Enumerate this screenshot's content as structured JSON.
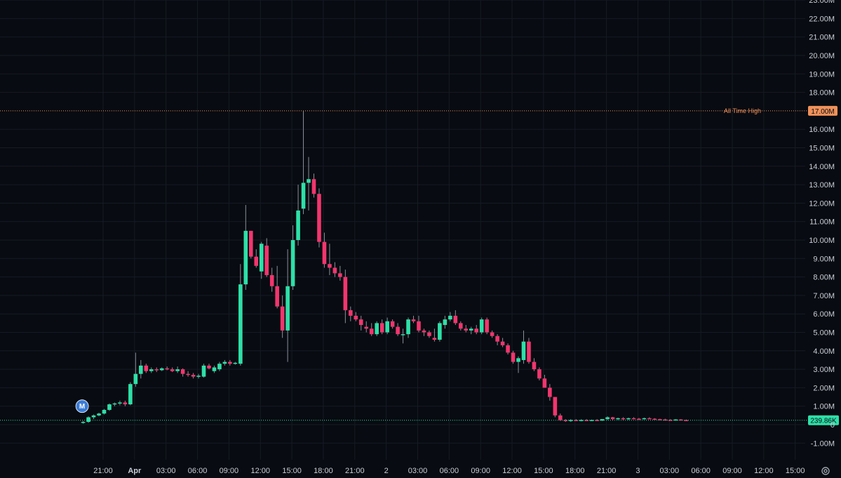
{
  "chart_data": {
    "type": "candlestick",
    "y_unit": "market cap",
    "ylim": [
      -1.5,
      23
    ],
    "y_ticks": [
      {
        "v": -1,
        "label": "-1.00M"
      },
      {
        "v": 0,
        "label": "0"
      },
      {
        "v": 1,
        "label": "1.00M"
      },
      {
        "v": 2,
        "label": "2.00M"
      },
      {
        "v": 3,
        "label": "3.00M"
      },
      {
        "v": 4,
        "label": "4.00M"
      },
      {
        "v": 5,
        "label": "5.00M"
      },
      {
        "v": 6,
        "label": "6.00M"
      },
      {
        "v": 7,
        "label": "7.00M"
      },
      {
        "v": 8,
        "label": "8.00M"
      },
      {
        "v": 9,
        "label": "9.00M"
      },
      {
        "v": 10,
        "label": "10.00M"
      },
      {
        "v": 11,
        "label": "11.00M"
      },
      {
        "v": 12,
        "label": "12.00M"
      },
      {
        "v": 13,
        "label": "13.00M"
      },
      {
        "v": 14,
        "label": "14.00M"
      },
      {
        "v": 15,
        "label": "15.00M"
      },
      {
        "v": 16,
        "label": "16.00M"
      },
      {
        "v": 18,
        "label": "18.00M"
      },
      {
        "v": 19,
        "label": "19.00M"
      },
      {
        "v": 20,
        "label": "20.00M"
      },
      {
        "v": 21,
        "label": "21.00M"
      },
      {
        "v": 22,
        "label": "22.00M"
      },
      {
        "v": 23,
        "label": "23.00M"
      }
    ],
    "x_ticks": [
      {
        "t": 21,
        "label": "21:00"
      },
      {
        "t": 24,
        "label": "Apr",
        "bold": true
      },
      {
        "t": 27,
        "label": "03:00"
      },
      {
        "t": 30,
        "label": "06:00"
      },
      {
        "t": 33,
        "label": "09:00"
      },
      {
        "t": 36,
        "label": "12:00"
      },
      {
        "t": 39,
        "label": "15:00"
      },
      {
        "t": 42,
        "label": "18:00"
      },
      {
        "t": 45,
        "label": "21:00"
      },
      {
        "t": 48,
        "label": "2"
      },
      {
        "t": 51,
        "label": "03:00"
      },
      {
        "t": 54,
        "label": "06:00"
      },
      {
        "t": 57,
        "label": "09:00"
      },
      {
        "t": 60,
        "label": "12:00"
      },
      {
        "t": 63,
        "label": "15:00"
      },
      {
        "t": 66,
        "label": "18:00"
      },
      {
        "t": 69,
        "label": "21:00"
      },
      {
        "t": 72,
        "label": "3"
      },
      {
        "t": 75,
        "label": "03:00"
      },
      {
        "t": 78,
        "label": "06:00"
      },
      {
        "t": 81,
        "label": "09:00"
      },
      {
        "t": 84,
        "label": "12:00"
      },
      {
        "t": 87,
        "label": "15:00"
      }
    ],
    "candle_interval_hours": 0.5,
    "first_candle_t": 19.1,
    "candles": [
      [
        0.1,
        0.2,
        0.05,
        0.15
      ],
      [
        0.15,
        0.45,
        0.1,
        0.4
      ],
      [
        0.4,
        0.55,
        0.3,
        0.5
      ],
      [
        0.5,
        0.65,
        0.45,
        0.6
      ],
      [
        0.6,
        0.85,
        0.55,
        0.8
      ],
      [
        0.8,
        1.15,
        0.75,
        1.1
      ],
      [
        1.1,
        1.2,
        1.0,
        1.15
      ],
      [
        1.15,
        1.3,
        1.05,
        1.2
      ],
      [
        1.2,
        1.3,
        1.0,
        1.1
      ],
      [
        1.1,
        2.3,
        1.05,
        2.2
      ],
      [
        2.2,
        3.9,
        2.05,
        2.75
      ],
      [
        2.75,
        3.5,
        2.5,
        3.2
      ],
      [
        3.2,
        3.3,
        2.8,
        2.9
      ],
      [
        2.9,
        3.1,
        2.8,
        3.0
      ],
      [
        3.0,
        3.1,
        2.85,
        2.95
      ],
      [
        2.95,
        3.1,
        2.9,
        3.05
      ],
      [
        3.05,
        3.15,
        2.95,
        3.0
      ],
      [
        3.0,
        3.1,
        2.85,
        2.9
      ],
      [
        2.9,
        3.15,
        2.8,
        3.0
      ],
      [
        3.0,
        3.05,
        2.6,
        2.75
      ],
      [
        2.75,
        2.9,
        2.6,
        2.7
      ],
      [
        2.7,
        2.8,
        2.5,
        2.6
      ],
      [
        2.6,
        2.75,
        2.5,
        2.65
      ],
      [
        2.6,
        3.3,
        2.55,
        3.2
      ],
      [
        3.2,
        3.3,
        3.0,
        3.05
      ],
      [
        2.9,
        3.2,
        2.8,
        3.1
      ],
      [
        3.0,
        3.4,
        2.9,
        3.3
      ],
      [
        3.3,
        3.5,
        3.2,
        3.4
      ],
      [
        3.4,
        3.5,
        3.2,
        3.3
      ],
      [
        3.3,
        3.4,
        3.25,
        3.35
      ],
      [
        3.3,
        8.7,
        3.2,
        7.6
      ],
      [
        7.6,
        11.9,
        7.3,
        10.5
      ],
      [
        10.5,
        10.5,
        9.0,
        9.1
      ],
      [
        9.1,
        9.5,
        8.5,
        8.6
      ],
      [
        8.3,
        9.9,
        7.9,
        9.8
      ],
      [
        9.7,
        10.1,
        8.0,
        8.1
      ],
      [
        8.1,
        8.5,
        7.2,
        7.5
      ],
      [
        7.5,
        8.6,
        6.3,
        6.4
      ],
      [
        6.4,
        7.0,
        4.7,
        5.1
      ],
      [
        5.1,
        9.5,
        3.4,
        7.5
      ],
      [
        7.5,
        10.8,
        7.3,
        10.0
      ],
      [
        10.0,
        13.0,
        9.7,
        11.6
      ],
      [
        11.7,
        17.0,
        11.4,
        13.1
      ],
      [
        13.1,
        14.5,
        11.6,
        13.3
      ],
      [
        13.3,
        13.6,
        12.3,
        12.5
      ],
      [
        12.5,
        12.8,
        9.6,
        9.9
      ],
      [
        9.9,
        10.4,
        8.5,
        8.7
      ],
      [
        8.7,
        9.8,
        8.1,
        8.5
      ],
      [
        8.5,
        8.8,
        8.0,
        8.2
      ],
      [
        8.2,
        8.6,
        7.8,
        8.0
      ],
      [
        8.0,
        8.4,
        5.5,
        6.2
      ],
      [
        6.2,
        6.4,
        5.6,
        5.9
      ],
      [
        5.9,
        6.1,
        5.6,
        5.7
      ],
      [
        5.7,
        5.9,
        5.1,
        5.4
      ],
      [
        5.3,
        5.6,
        5.0,
        5.2
      ],
      [
        5.2,
        5.5,
        4.8,
        4.9
      ],
      [
        4.9,
        5.6,
        4.8,
        5.5
      ],
      [
        5.5,
        5.7,
        4.9,
        5.0
      ],
      [
        5.0,
        5.8,
        4.9,
        5.6
      ],
      [
        5.6,
        5.7,
        5.2,
        5.3
      ],
      [
        5.3,
        5.5,
        4.8,
        4.9
      ],
      [
        4.9,
        5.2,
        4.4,
        4.9
      ],
      [
        4.9,
        5.8,
        4.7,
        5.7
      ],
      [
        5.7,
        5.9,
        5.5,
        5.6
      ],
      [
        5.6,
        5.9,
        5.0,
        5.1
      ],
      [
        5.1,
        5.2,
        4.8,
        5.0
      ],
      [
        5.0,
        5.1,
        4.7,
        4.8
      ],
      [
        4.7,
        5.2,
        4.5,
        4.6
      ],
      [
        4.6,
        5.6,
        4.5,
        5.5
      ],
      [
        5.4,
        5.9,
        5.2,
        5.7
      ],
      [
        5.7,
        6.1,
        5.6,
        5.9
      ],
      [
        5.9,
        6.2,
        5.4,
        5.5
      ],
      [
        5.5,
        5.6,
        5.1,
        5.2
      ],
      [
        5.2,
        5.4,
        5.0,
        5.1
      ],
      [
        5.1,
        5.3,
        4.9,
        5.2
      ],
      [
        5.2,
        5.4,
        4.9,
        5.0
      ],
      [
        5.0,
        5.8,
        4.9,
        5.7
      ],
      [
        5.7,
        5.8,
        4.9,
        5.0
      ],
      [
        5.0,
        5.1,
        4.7,
        4.8
      ],
      [
        4.8,
        4.9,
        4.3,
        4.5
      ],
      [
        4.5,
        4.7,
        4.2,
        4.3
      ],
      [
        4.3,
        4.4,
        3.8,
        3.9
      ],
      [
        3.9,
        4.0,
        3.3,
        3.4
      ],
      [
        3.4,
        3.7,
        2.8,
        3.6
      ],
      [
        3.5,
        5.1,
        3.3,
        4.5
      ],
      [
        4.5,
        4.7,
        3.3,
        3.4
      ],
      [
        3.4,
        3.6,
        2.9,
        3.0
      ],
      [
        3.0,
        3.1,
        2.4,
        2.5
      ],
      [
        2.5,
        2.7,
        2.0,
        2.0
      ],
      [
        2.0,
        2.2,
        1.3,
        1.5
      ],
      [
        1.5,
        1.5,
        0.4,
        0.5
      ],
      [
        0.5,
        0.6,
        0.2,
        0.25
      ],
      [
        0.25,
        0.3,
        0.15,
        0.2
      ],
      [
        0.2,
        0.3,
        0.15,
        0.25
      ],
      [
        0.25,
        0.3,
        0.2,
        0.22
      ],
      [
        0.22,
        0.3,
        0.18,
        0.25
      ],
      [
        0.25,
        0.3,
        0.2,
        0.22
      ],
      [
        0.22,
        0.28,
        0.2,
        0.25
      ],
      [
        0.25,
        0.3,
        0.2,
        0.22
      ],
      [
        0.22,
        0.3,
        0.2,
        0.3
      ],
      [
        0.3,
        0.45,
        0.25,
        0.4
      ],
      [
        0.4,
        0.42,
        0.25,
        0.3
      ],
      [
        0.3,
        0.38,
        0.25,
        0.35
      ],
      [
        0.35,
        0.4,
        0.25,
        0.3
      ],
      [
        0.3,
        0.38,
        0.25,
        0.35
      ],
      [
        0.35,
        0.4,
        0.3,
        0.32
      ],
      [
        0.32,
        0.36,
        0.28,
        0.3
      ],
      [
        0.3,
        0.38,
        0.28,
        0.35
      ],
      [
        0.35,
        0.4,
        0.3,
        0.32
      ],
      [
        0.32,
        0.35,
        0.28,
        0.3
      ],
      [
        0.3,
        0.32,
        0.25,
        0.28
      ],
      [
        0.28,
        0.32,
        0.24,
        0.26
      ],
      [
        0.26,
        0.3,
        0.22,
        0.24
      ],
      [
        0.24,
        0.3,
        0.22,
        0.28
      ],
      [
        0.28,
        0.3,
        0.24,
        0.25
      ],
      [
        0.25,
        0.28,
        0.22,
        0.24
      ]
    ],
    "all_time_high": {
      "value": 17.0,
      "label": "All Time High",
      "badge": "17.00M"
    },
    "current_price": {
      "value": 0.23986,
      "badge": "239.86K"
    },
    "marker": {
      "t": 19.0,
      "y": 1.0,
      "label": "M"
    },
    "colors": {
      "up": "#2ee0a8",
      "down": "#f2356e",
      "wick": "#8a8f99",
      "ath": "#f0915a",
      "current": "#2ee0a8",
      "grid": "#161b24",
      "marker": "#3a7bd5",
      "background": "#080b11",
      "tick_text": "#c9cdd6"
    },
    "grid": true
  },
  "icons": {
    "settings": "settings-gear-icon"
  }
}
